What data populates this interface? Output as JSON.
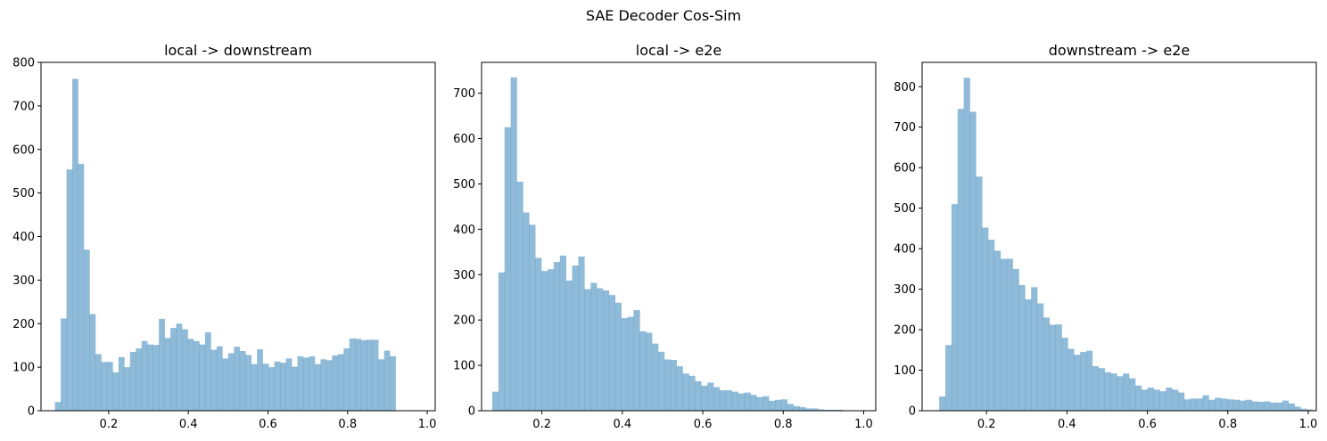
{
  "figure": {
    "suptitle": "SAE Decoder Cos-Sim"
  },
  "style": {
    "bar_color": "#1f77b4",
    "bar_opacity": 0.5,
    "axis_color": "#000000"
  },
  "chart_data": [
    {
      "type": "bar",
      "title": "local -> downstream",
      "xlabel": "",
      "ylabel": "",
      "xlim": [
        0.03,
        1.02
      ],
      "ylim": [
        0,
        800
      ],
      "xticks": [
        0.2,
        0.4,
        0.6,
        0.8,
        1.0
      ],
      "xtick_labels": [
        "0.2",
        "0.4",
        "0.6",
        "0.8",
        "1.0"
      ],
      "yticks": [
        0,
        100,
        200,
        300,
        400,
        500,
        600,
        700,
        800
      ],
      "ytick_labels": [
        "0",
        "100",
        "200",
        "300",
        "400",
        "500",
        "600",
        "700",
        "800"
      ],
      "bin_start": 0.065,
      "bin_width": 0.0145,
      "values": [
        20,
        212,
        554,
        762,
        567,
        370,
        222,
        130,
        112,
        112,
        88,
        123,
        100,
        135,
        143,
        160,
        152,
        151,
        211,
        167,
        190,
        200,
        187,
        165,
        160,
        152,
        180,
        140,
        148,
        120,
        132,
        147,
        137,
        128,
        107,
        141,
        108,
        100,
        113,
        110,
        120,
        101,
        125,
        122,
        125,
        107,
        118,
        116,
        127,
        130,
        143,
        166,
        165,
        162,
        163,
        163,
        118,
        138,
        125
      ]
    },
    {
      "type": "bar",
      "title": "local -> e2e",
      "xlabel": "",
      "ylabel": "",
      "xlim": [
        0.05,
        1.03
      ],
      "ylim": [
        0,
        768
      ],
      "xticks": [
        0.2,
        0.4,
        0.6,
        0.8,
        1.0
      ],
      "xtick_labels": [
        "0.2",
        "0.4",
        "0.6",
        "0.8",
        "1.0"
      ],
      "yticks": [
        0,
        100,
        200,
        300,
        400,
        500,
        600,
        700
      ],
      "ytick_labels": [
        "0",
        "100",
        "200",
        "300",
        "400",
        "500",
        "600",
        "700"
      ],
      "bin_start": 0.0765,
      "bin_width": 0.01528,
      "values": [
        42,
        305,
        625,
        735,
        505,
        437,
        410,
        337,
        308,
        312,
        328,
        342,
        287,
        320,
        340,
        268,
        282,
        270,
        265,
        255,
        238,
        204,
        207,
        222,
        175,
        172,
        148,
        130,
        113,
        112,
        98,
        82,
        77,
        65,
        55,
        62,
        52,
        45,
        45,
        42,
        38,
        40,
        35,
        30,
        32,
        22,
        24,
        25,
        15,
        10,
        8,
        5,
        5,
        3,
        2,
        2,
        2
      ]
    },
    {
      "type": "bar",
      "title": "downstream -> e2e",
      "xlabel": "",
      "ylabel": "",
      "xlim": [
        0.04,
        1.02
      ],
      "ylim": [
        0,
        860
      ],
      "xticks": [
        0.2,
        0.4,
        0.6,
        0.8,
        1.0
      ],
      "xtick_labels": [
        "0.2",
        "0.4",
        "0.6",
        "0.8",
        "1.0"
      ],
      "yticks": [
        0,
        100,
        200,
        300,
        400,
        500,
        600,
        700,
        800
      ],
      "ytick_labels": [
        "0",
        "100",
        "200",
        "300",
        "400",
        "500",
        "600",
        "700",
        "800"
      ],
      "bin_start": 0.0825,
      "bin_width": 0.01523,
      "values": [
        35,
        162,
        510,
        745,
        822,
        738,
        578,
        452,
        422,
        395,
        375,
        375,
        350,
        310,
        275,
        305,
        265,
        230,
        212,
        213,
        180,
        153,
        138,
        145,
        148,
        110,
        105,
        95,
        92,
        85,
        92,
        80,
        62,
        52,
        57,
        52,
        48,
        57,
        52,
        45,
        28,
        30,
        30,
        38,
        27,
        32,
        30,
        28,
        27,
        25,
        27,
        23,
        22,
        23,
        20,
        20,
        25,
        18,
        10,
        5,
        3
      ]
    }
  ]
}
